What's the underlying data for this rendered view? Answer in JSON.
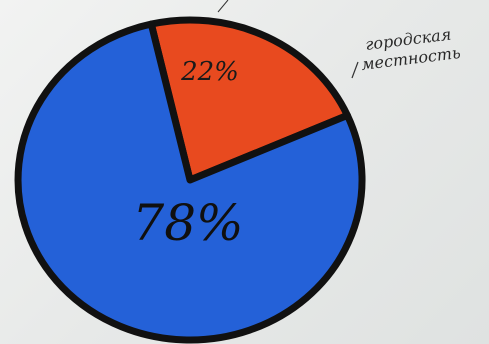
{
  "chart_data": {
    "type": "pie",
    "slices": [
      {
        "label": "22%",
        "value": 22,
        "color": "#e84a1f"
      },
      {
        "label": "78%",
        "value": 78,
        "color": "#2461d8"
      }
    ],
    "annotation": {
      "line1": "городская",
      "line2": "местность"
    }
  }
}
